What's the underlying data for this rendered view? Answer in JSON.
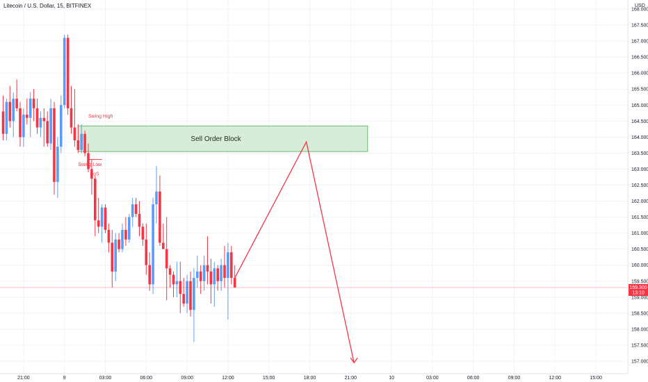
{
  "chart_data": {
    "type": "candlestick",
    "title": "Litecoin / U.S. Dollar, 15, BITFINEX",
    "currency_label": "USD",
    "ylim": [
      156.8,
      168.15
    ],
    "y_ticks": [
      "157.000",
      "157.500",
      "158.000",
      "158.500",
      "159.000",
      "159.500",
      "160.000",
      "160.500",
      "161.000",
      "161.500",
      "162.000",
      "162.500",
      "163.000",
      "163.500",
      "164.000",
      "164.500",
      "165.000",
      "165.500",
      "166.000",
      "166.500",
      "167.000",
      "167.500",
      "168.000"
    ],
    "x_ticks": [
      {
        "label": "21:00",
        "bar": 6
      },
      {
        "label": "9",
        "bar": 18
      },
      {
        "label": "03:00",
        "bar": 30
      },
      {
        "label": "06:00",
        "bar": 42
      },
      {
        "label": "09:00",
        "bar": 54
      },
      {
        "label": "12:00",
        "bar": 66
      },
      {
        "label": "15:00",
        "bar": 78
      },
      {
        "label": "18:00",
        "bar": 90
      },
      {
        "label": "21:00",
        "bar": 102
      },
      {
        "label": "10",
        "bar": 114
      },
      {
        "label": "03:00",
        "bar": 126
      },
      {
        "label": "06:00",
        "bar": 138
      },
      {
        "label": "09:00",
        "bar": 150
      },
      {
        "label": "12:00",
        "bar": 162
      },
      {
        "label": "15:00",
        "bar": 174
      }
    ],
    "current_price": "159.300",
    "countdown": "13:10",
    "colors": {
      "up": "#5b9cf6",
      "down": "#f23645",
      "zone_fill": "#c8e6c9",
      "zone_border": "#4caf50",
      "projection": "#f23645",
      "grid": "#f0f3fa"
    },
    "candles": [
      [
        164.8,
        165.3,
        163.9,
        164.1
      ],
      [
        164.1,
        165.2,
        163.9,
        165.1
      ],
      [
        165.1,
        165.6,
        164.3,
        164.5
      ],
      [
        164.5,
        165.4,
        164.0,
        165.2
      ],
      [
        165.2,
        165.8,
        164.8,
        164.9
      ],
      [
        164.9,
        165.1,
        163.7,
        164.0
      ],
      [
        164.0,
        164.9,
        163.7,
        164.7
      ],
      [
        164.7,
        165.2,
        164.4,
        164.6
      ],
      [
        164.6,
        165.4,
        164.0,
        165.2
      ],
      [
        165.2,
        165.5,
        164.5,
        164.9
      ],
      [
        164.9,
        165.2,
        164.1,
        164.3
      ],
      [
        164.3,
        164.8,
        164.0,
        164.6
      ],
      [
        164.6,
        164.9,
        163.7,
        164.5
      ],
      [
        164.5,
        164.8,
        163.7,
        163.8
      ],
      [
        163.8,
        165.2,
        163.6,
        164.9
      ],
      [
        164.9,
        165.1,
        162.2,
        162.6
      ],
      [
        162.6,
        164.0,
        162.1,
        163.7
      ],
      [
        163.7,
        165.3,
        163.5,
        165.0
      ],
      [
        165.0,
        167.2,
        164.9,
        167.1
      ],
      [
        167.1,
        167.2,
        164.7,
        164.9
      ],
      [
        164.9,
        165.6,
        164.1,
        164.3
      ],
      [
        164.3,
        165.5,
        163.7,
        163.9
      ],
      [
        163.9,
        164.4,
        163.5,
        163.6
      ],
      [
        163.6,
        164.4,
        163.5,
        164.1
      ],
      [
        164.1,
        164.2,
        163.4,
        163.5
      ],
      [
        163.5,
        163.8,
        162.9,
        163.0
      ],
      [
        163.0,
        163.3,
        162.2,
        162.7
      ],
      [
        162.7,
        162.8,
        160.9,
        161.4
      ],
      [
        161.4,
        162.1,
        161.0,
        161.2
      ],
      [
        161.2,
        161.9,
        160.7,
        161.8
      ],
      [
        161.8,
        161.9,
        161.0,
        161.1
      ],
      [
        161.1,
        161.3,
        160.4,
        160.7
      ],
      [
        160.7,
        161.1,
        159.3,
        159.8
      ],
      [
        159.8,
        161.0,
        159.5,
        160.8
      ],
      [
        160.8,
        161.0,
        160.4,
        160.5
      ],
      [
        160.5,
        161.3,
        160.4,
        161.1
      ],
      [
        161.1,
        161.5,
        160.6,
        160.8
      ],
      [
        160.8,
        161.6,
        160.7,
        161.5
      ],
      [
        161.5,
        162.1,
        161.2,
        161.9
      ],
      [
        161.9,
        162.1,
        161.5,
        161.6
      ],
      [
        161.6,
        162.0,
        160.9,
        161.2
      ],
      [
        161.2,
        161.3,
        160.6,
        160.8
      ],
      [
        160.8,
        161.3,
        159.7,
        160.0
      ],
      [
        160.0,
        160.4,
        159.2,
        159.4
      ],
      [
        159.4,
        162.1,
        159.1,
        161.9
      ],
      [
        161.9,
        163.1,
        161.3,
        162.3
      ],
      [
        162.3,
        162.8,
        160.6,
        160.7
      ],
      [
        160.7,
        161.3,
        160.5,
        160.5
      ],
      [
        160.5,
        161.5,
        158.9,
        159.9
      ],
      [
        159.9,
        160.0,
        159.3,
        159.7
      ],
      [
        159.7,
        159.8,
        159.0,
        159.4
      ],
      [
        159.4,
        160.1,
        159.0,
        159.5
      ],
      [
        159.5,
        160.1,
        158.5,
        159.1
      ],
      [
        159.1,
        159.6,
        158.7,
        158.8
      ],
      [
        158.8,
        159.7,
        158.5,
        159.5
      ],
      [
        159.5,
        159.8,
        158.4,
        158.6
      ],
      [
        158.6,
        159.9,
        157.6,
        159.6
      ],
      [
        159.6,
        160.3,
        159.3,
        159.8
      ],
      [
        159.8,
        160.0,
        159.1,
        159.5
      ],
      [
        159.5,
        160.3,
        159.2,
        160.0
      ],
      [
        160.0,
        160.9,
        159.4,
        159.8
      ],
      [
        159.8,
        160.2,
        158.8,
        159.4
      ],
      [
        159.4,
        160.1,
        158.7,
        159.9
      ],
      [
        159.9,
        160.0,
        159.2,
        159.5
      ],
      [
        159.5,
        160.2,
        159.2,
        160.0
      ],
      [
        160.0,
        160.6,
        159.3,
        159.6
      ],
      [
        159.6,
        160.7,
        158.3,
        160.4
      ],
      [
        160.4,
        160.6,
        159.4,
        159.6
      ],
      [
        159.6,
        160.0,
        159.3,
        159.3
      ]
    ],
    "annotations": {
      "swing_high": "Swing High",
      "swing_low": "Swing Low",
      "bos": "BoS",
      "order_block": "Sell Order Block"
    },
    "order_block": {
      "start_bar": 22,
      "end_bar": 107,
      "top": 164.35,
      "bottom": 163.55
    },
    "projection": [
      [
        68,
        159.6
      ],
      [
        89,
        163.85
      ],
      [
        103,
        156.95
      ]
    ]
  }
}
